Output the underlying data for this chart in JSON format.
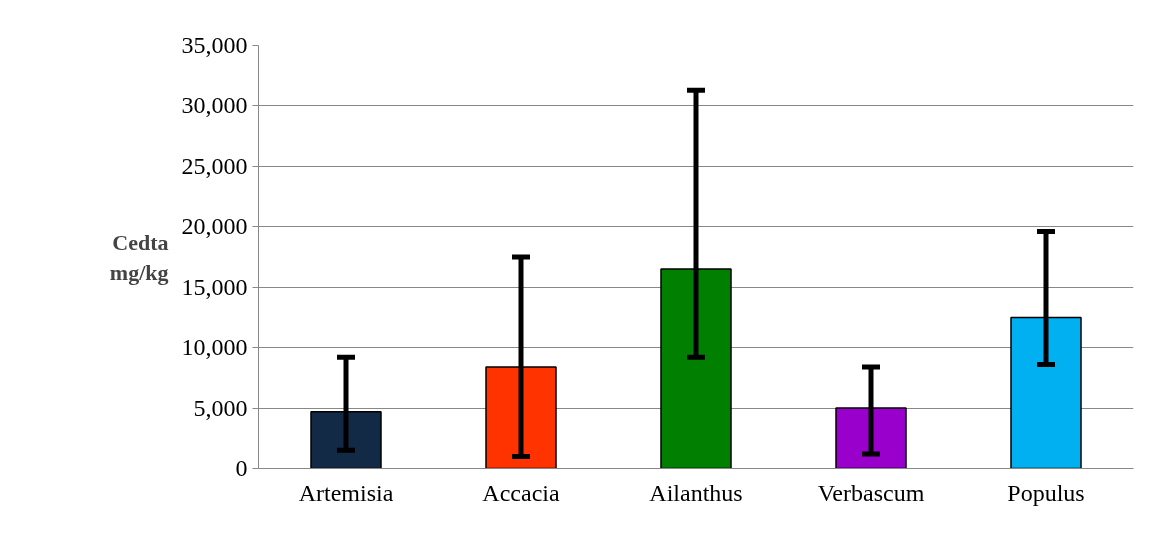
{
  "chart_data": {
    "type": "bar",
    "ylabel": "Cedta mg/kg",
    "categories": [
      "Artemisia",
      "Accacia",
      "Ailanthus",
      "Verbascum",
      "Populus"
    ],
    "values": [
      4700,
      8400,
      16500,
      5000,
      12500
    ],
    "colors": [
      "#132a47",
      "#ff3300",
      "#007f00",
      "#9900cc",
      "#00b0f0"
    ],
    "errors": [
      [
        1500,
        9200
      ],
      [
        1000,
        17500
      ],
      [
        9200,
        31300
      ],
      [
        1200,
        8400
      ],
      [
        8600,
        19600
      ]
    ],
    "ylim": [
      0,
      35000
    ],
    "yticks": [
      {
        "value": 0,
        "label": "0"
      },
      {
        "value": 5000,
        "label": "5,000"
      },
      {
        "value": 10000,
        "label": "10,000"
      },
      {
        "value": 15000,
        "label": "15,000"
      },
      {
        "value": 20000,
        "label": "20,000"
      },
      {
        "value": 25000,
        "label": "25,000"
      },
      {
        "value": 30000,
        "label": "30,000"
      },
      {
        "value": 35000,
        "label": "35,000"
      }
    ],
    "grid": "y"
  }
}
